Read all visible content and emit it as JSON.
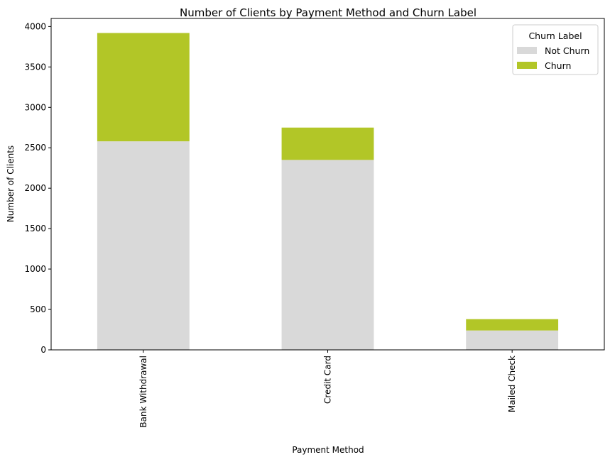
{
  "chart_data": {
    "type": "bar",
    "stacked": true,
    "title": "Number of Clients by Payment Method and Churn Label",
    "xlabel": "Payment Method",
    "ylabel": "Number of Clients",
    "categories": [
      "Bank Withdrawal",
      "Credit Card",
      "Mailed Check"
    ],
    "series": [
      {
        "name": "Not Churn",
        "values": [
          2580,
          2350,
          240
        ],
        "color": "#d9d9d9"
      },
      {
        "name": "Churn",
        "values": [
          1340,
          400,
          140
        ],
        "color": "#b2c627"
      }
    ],
    "ylim": [
      0,
      4100
    ],
    "yticks": [
      0,
      500,
      1000,
      1500,
      2000,
      2500,
      3000,
      3500,
      4000
    ],
    "grid": false,
    "legend": {
      "title": "Churn Label",
      "placement": "top-right"
    }
  }
}
